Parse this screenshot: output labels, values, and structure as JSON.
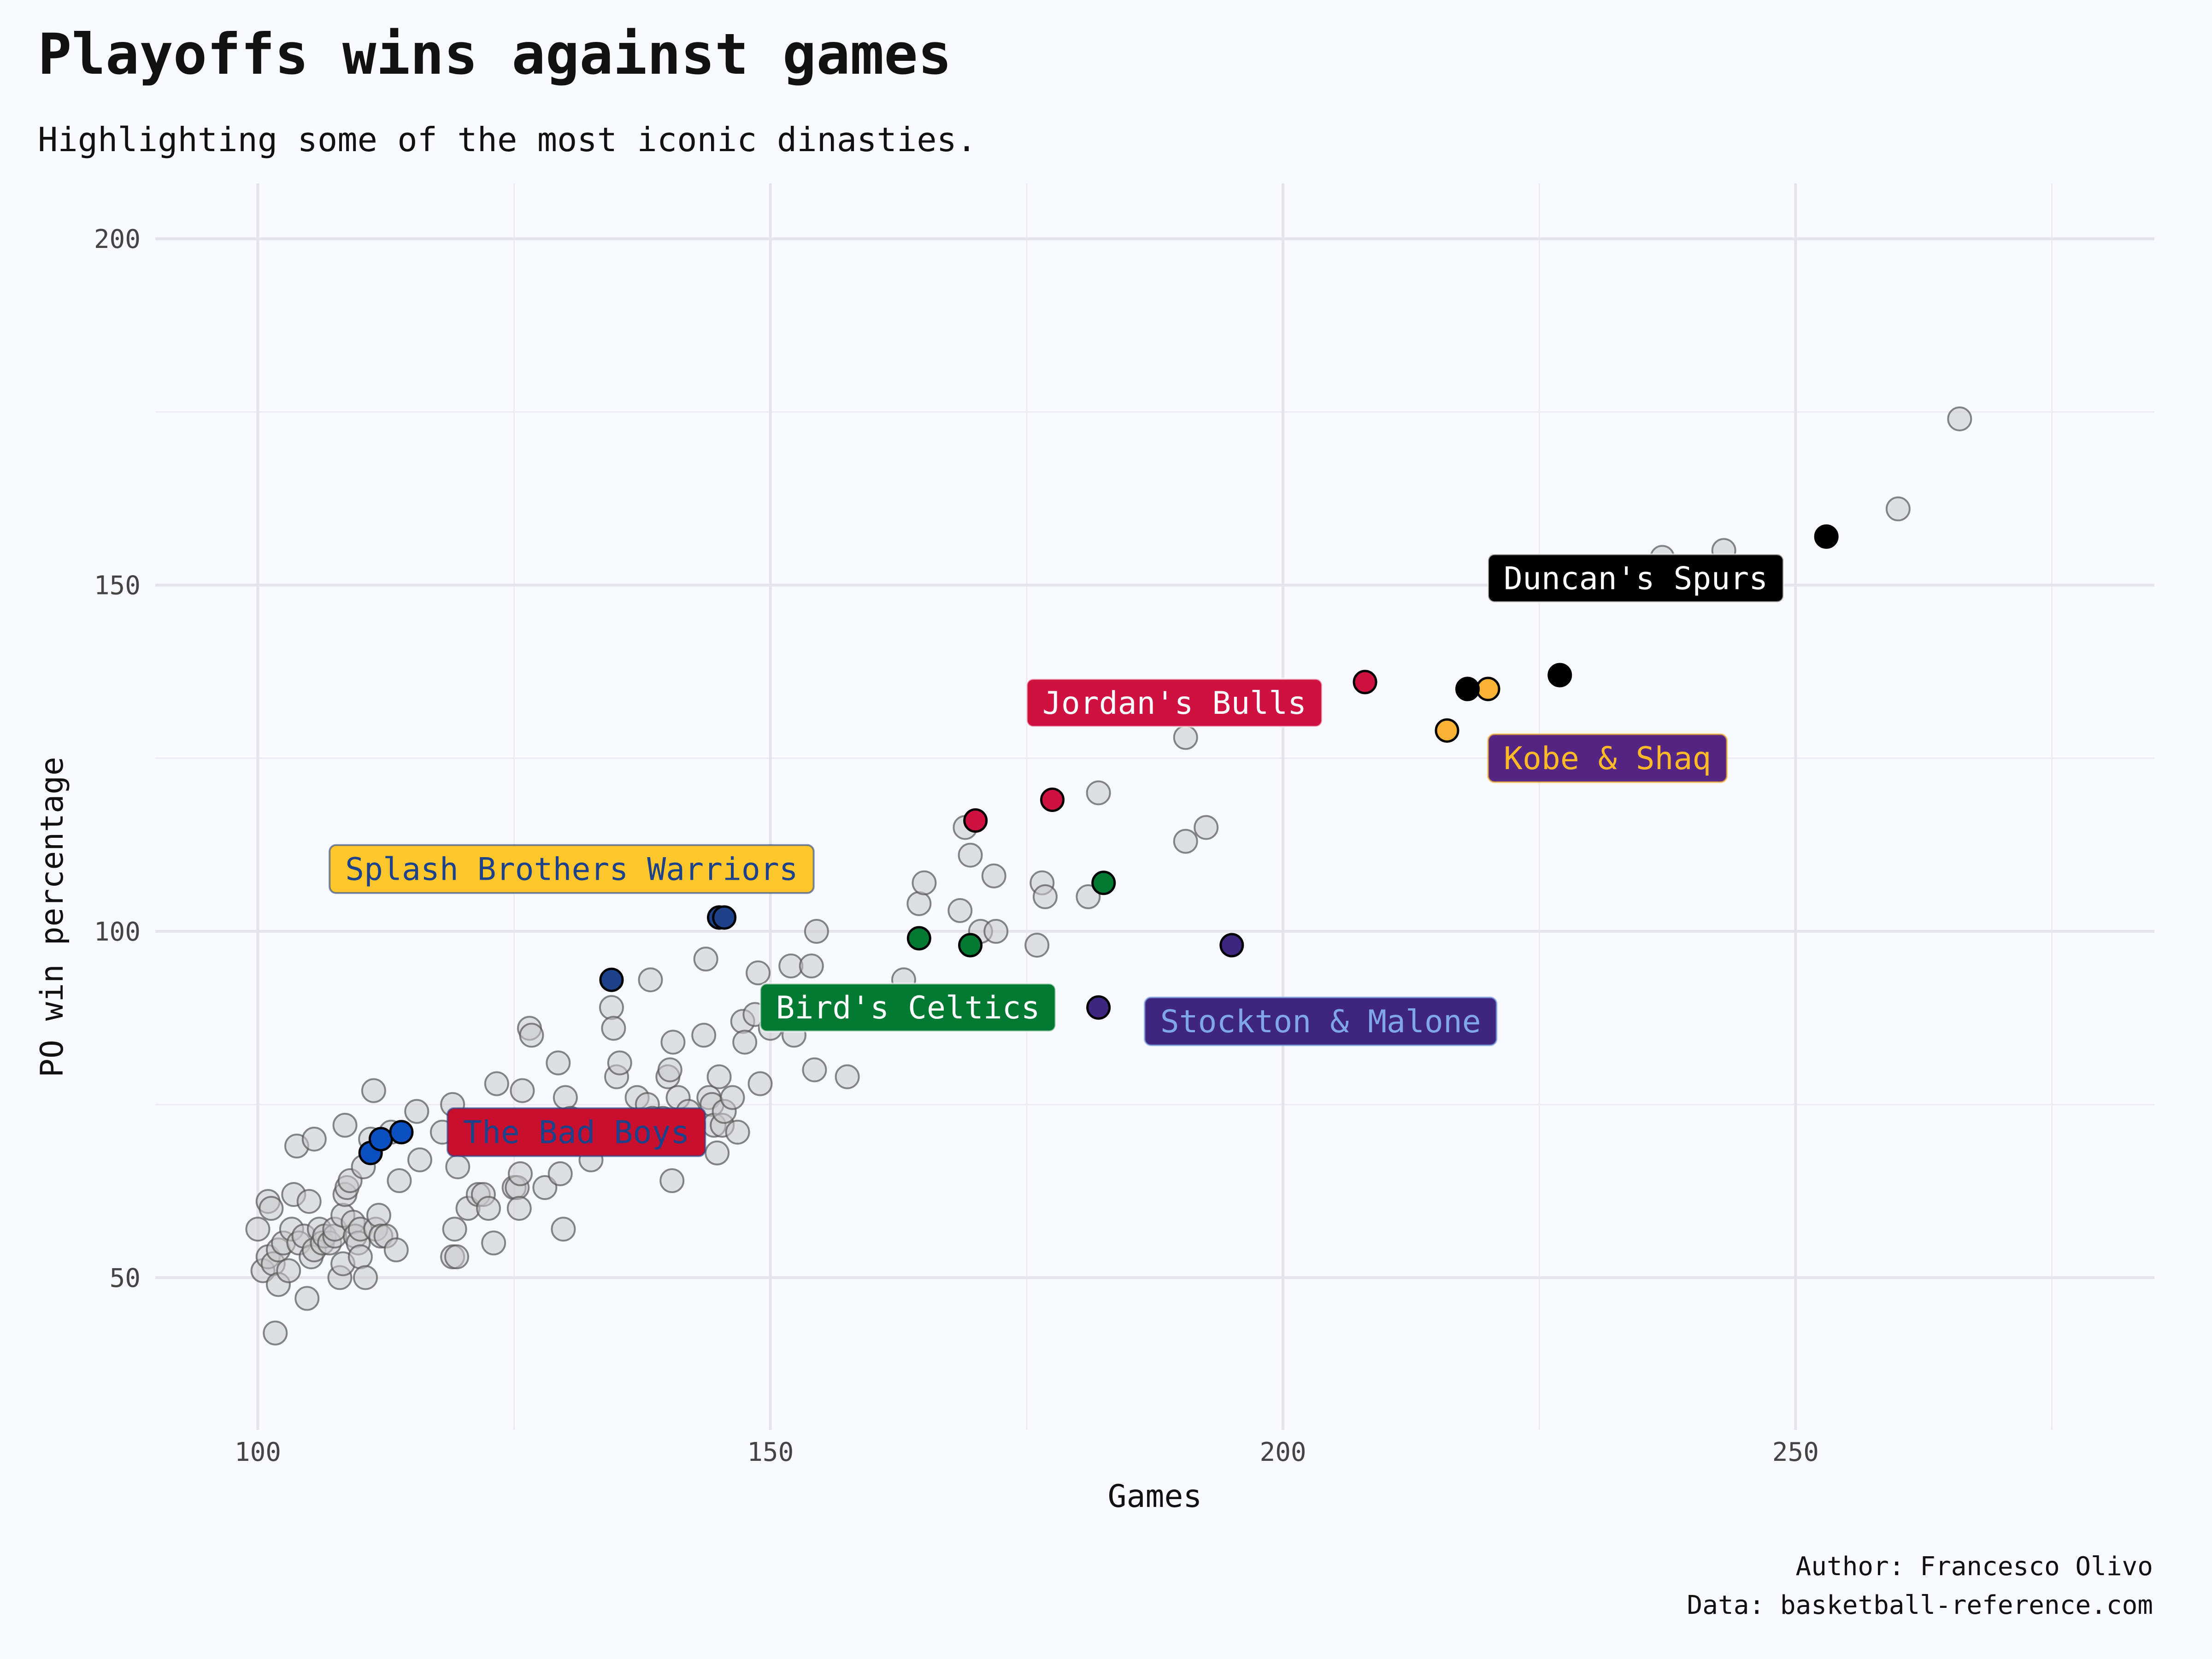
{
  "chart_data": {
    "type": "scatter",
    "title": "Playoffs wins against games",
    "subtitle": "Highlighting some of the most iconic dinasties.",
    "xlabel": "Games",
    "ylabel": "PO win percentage",
    "xlim": [
      90,
      285
    ],
    "ylim": [
      28,
      208
    ],
    "xticks": [
      100,
      150,
      200,
      250
    ],
    "yticks": [
      50,
      100,
      150,
      200
    ],
    "grid": true,
    "caption": [
      "Author: Francesco Olivo",
      "Data: basketball-reference.com"
    ],
    "background_points": [
      [
        100,
        57
      ],
      [
        100.5,
        51
      ],
      [
        101,
        61
      ],
      [
        101,
        53
      ],
      [
        101.3,
        60
      ],
      [
        101.5,
        52
      ],
      [
        101.7,
        42
      ],
      [
        102,
        49
      ],
      [
        102,
        54
      ],
      [
        102.5,
        55
      ],
      [
        103,
        51
      ],
      [
        103.3,
        57
      ],
      [
        103.5,
        62
      ],
      [
        103.8,
        69
      ],
      [
        104,
        55
      ],
      [
        104.5,
        56
      ],
      [
        104.8,
        47
      ],
      [
        105,
        61
      ],
      [
        105.2,
        53
      ],
      [
        105.5,
        54
      ],
      [
        105.5,
        70
      ],
      [
        106,
        57
      ],
      [
        106.3,
        55
      ],
      [
        106.5,
        56
      ],
      [
        107,
        55
      ],
      [
        107.5,
        56
      ],
      [
        107.5,
        57
      ],
      [
        108,
        50
      ],
      [
        108.3,
        52
      ],
      [
        108.3,
        59
      ],
      [
        108.5,
        62
      ],
      [
        108.5,
        72
      ],
      [
        108.7,
        63
      ],
      [
        109,
        64
      ],
      [
        109.3,
        58
      ],
      [
        109.5,
        56
      ],
      [
        109.8,
        55
      ],
      [
        110,
        53
      ],
      [
        110,
        57
      ],
      [
        110.3,
        66
      ],
      [
        110.5,
        50
      ],
      [
        111,
        70
      ],
      [
        111.3,
        77
      ],
      [
        111.5,
        57
      ],
      [
        111.8,
        59
      ],
      [
        112,
        56
      ],
      [
        112.5,
        56
      ],
      [
        113,
        71
      ],
      [
        113.5,
        54
      ],
      [
        113.8,
        64
      ],
      [
        115.5,
        74
      ],
      [
        115.8,
        67
      ],
      [
        118,
        71
      ],
      [
        119,
        75
      ],
      [
        119,
        53
      ],
      [
        119.2,
        57
      ],
      [
        119.4,
        53
      ],
      [
        119.5,
        66
      ],
      [
        120.5,
        60
      ],
      [
        121.5,
        62
      ],
      [
        122,
        62
      ],
      [
        122.5,
        60
      ],
      [
        123,
        55
      ],
      [
        123.3,
        78
      ],
      [
        125,
        63
      ],
      [
        125.3,
        63
      ],
      [
        125.5,
        60
      ],
      [
        125.6,
        65
      ],
      [
        125.8,
        77
      ],
      [
        126.5,
        86
      ],
      [
        126.7,
        85
      ],
      [
        128,
        63
      ],
      [
        129.3,
        81
      ],
      [
        129.5,
        65
      ],
      [
        129.8,
        57
      ],
      [
        130,
        76
      ],
      [
        130.5,
        73
      ],
      [
        131,
        71
      ],
      [
        132,
        72
      ],
      [
        132.5,
        67
      ],
      [
        134.5,
        89
      ],
      [
        134.7,
        86
      ],
      [
        135,
        79
      ],
      [
        135.3,
        81
      ],
      [
        135.5,
        72
      ],
      [
        137,
        76
      ],
      [
        138,
        75
      ],
      [
        138.3,
        93
      ],
      [
        138.5,
        73
      ],
      [
        139.5,
        73
      ],
      [
        140,
        79
      ],
      [
        140.2,
        80
      ],
      [
        140.4,
        64
      ],
      [
        140.5,
        84
      ],
      [
        141,
        76
      ],
      [
        141.5,
        72
      ],
      [
        142,
        74
      ],
      [
        142.5,
        72
      ],
      [
        143.5,
        85
      ],
      [
        143.7,
        96
      ],
      [
        144,
        76
      ],
      [
        144.3,
        75
      ],
      [
        144.5,
        72
      ],
      [
        144.8,
        68
      ],
      [
        145,
        79
      ],
      [
        145.3,
        72
      ],
      [
        145.5,
        74
      ],
      [
        146.3,
        76
      ],
      [
        146.8,
        71
      ],
      [
        147.3,
        87
      ],
      [
        147.5,
        84
      ],
      [
        148.5,
        88
      ],
      [
        148.8,
        94
      ],
      [
        149,
        78
      ],
      [
        150,
        86
      ],
      [
        151,
        89
      ],
      [
        152,
        95
      ],
      [
        152.3,
        85
      ],
      [
        153,
        89
      ],
      [
        154,
        95
      ],
      [
        154.3,
        80
      ],
      [
        154.5,
        100
      ],
      [
        157.5,
        79
      ],
      [
        163,
        93
      ],
      [
        164.5,
        104
      ],
      [
        165,
        107
      ],
      [
        168.5,
        103
      ],
      [
        169,
        115
      ],
      [
        169.5,
        111
      ],
      [
        170,
        89
      ],
      [
        170.5,
        100
      ],
      [
        171.8,
        108
      ],
      [
        172,
        100
      ],
      [
        176,
        98
      ],
      [
        176.5,
        107
      ],
      [
        176.8,
        105
      ],
      [
        181,
        105
      ],
      [
        182,
        120
      ],
      [
        190.5,
        128
      ],
      [
        190.5,
        113
      ],
      [
        192.5,
        115
      ],
      [
        237,
        154
      ],
      [
        243,
        155
      ],
      [
        260,
        161
      ],
      [
        266,
        174
      ]
    ],
    "series": [
      {
        "name": "Splash Brothers Warriors",
        "fill": "#1d428a",
        "label_bg": "#ffc72c",
        "label_fg": "#1d428a",
        "points": [
          [
            134.5,
            93
          ],
          [
            145,
            102
          ],
          [
            145.5,
            102
          ]
        ]
      },
      {
        "name": "Jordan's Bulls",
        "fill": "#ce1141",
        "label_bg": "#ce1141",
        "label_fg": "#ffffff",
        "points": [
          [
            170,
            116
          ],
          [
            177.5,
            119
          ],
          [
            208,
            136
          ]
        ]
      },
      {
        "name": "Bird's Celtics",
        "fill": "#007a33",
        "label_bg": "#007a33",
        "label_fg": "#ffffff",
        "points": [
          [
            164.5,
            99
          ],
          [
            169.5,
            98
          ],
          [
            182.5,
            107
          ]
        ]
      },
      {
        "name": "Stockton & Malone",
        "fill": "#3e2680",
        "label_bg": "#3e2680",
        "label_fg": "#7fa6e6",
        "points": [
          [
            182,
            89
          ],
          [
            195,
            98
          ]
        ]
      },
      {
        "name": "Kobe & Shaq",
        "fill": "#f9b233",
        "label_bg": "#552583",
        "label_fg": "#fdb927",
        "points": [
          [
            216,
            129
          ],
          [
            220,
            135
          ]
        ]
      },
      {
        "name": "Duncan's Spurs",
        "fill": "#000000",
        "label_bg": "#000000",
        "label_fg": "#ffffff",
        "points": [
          [
            218,
            135
          ],
          [
            227,
            137
          ],
          [
            253,
            157
          ]
        ]
      },
      {
        "name": "The Bad Boys",
        "fill": "#0c4fc0",
        "label_bg": "#c8102e",
        "label_fg": "#1d428a",
        "points": [
          [
            111,
            68
          ],
          [
            112,
            70
          ],
          [
            114,
            71
          ]
        ]
      }
    ]
  }
}
